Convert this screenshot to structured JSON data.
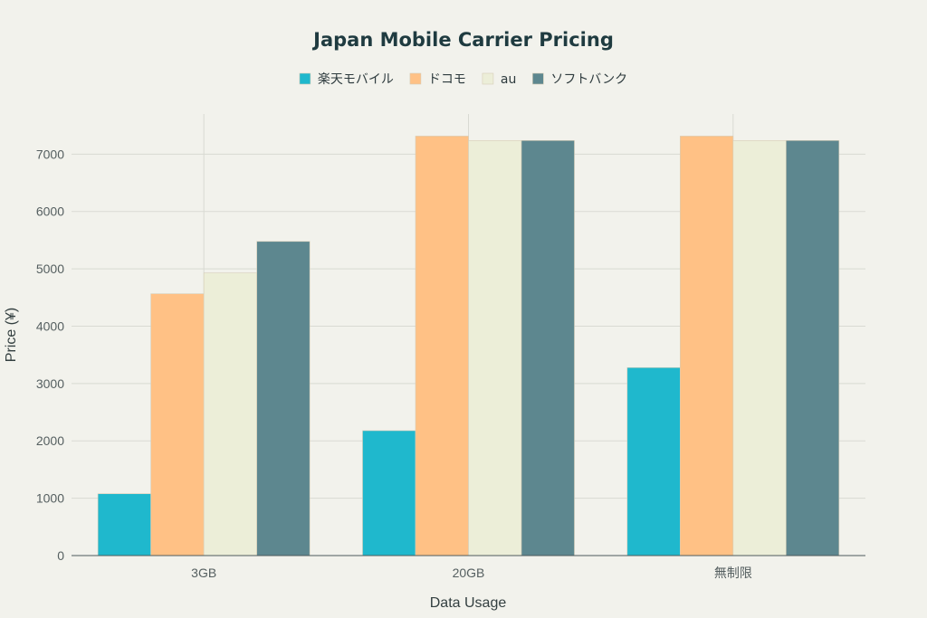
{
  "chart_data": {
    "type": "bar",
    "title": "Japan Mobile Carrier Pricing",
    "xlabel": "Data Usage",
    "ylabel": "Price (¥)",
    "categories": [
      "3GB",
      "20GB",
      "無制限"
    ],
    "ylim": [
      0,
      7700
    ],
    "yticks": [
      0,
      1000,
      2000,
      3000,
      4000,
      5000,
      6000,
      7000
    ],
    "grid": true,
    "legend_position": "top-center",
    "series": [
      {
        "name": "楽天モバイル",
        "color": "#1fb8cd",
        "values": [
          1078,
          2178,
          3278
        ]
      },
      {
        "name": "ドコモ",
        "color": "#ffc185",
        "values": [
          4565,
          7315,
          7315
        ]
      },
      {
        "name": "au",
        "color": "#eceed8",
        "values": [
          4928,
          7238,
          7238
        ]
      },
      {
        "name": "ソフトバンク",
        "color": "#5d878f",
        "values": [
          5478,
          7238,
          7238
        ]
      }
    ]
  }
}
